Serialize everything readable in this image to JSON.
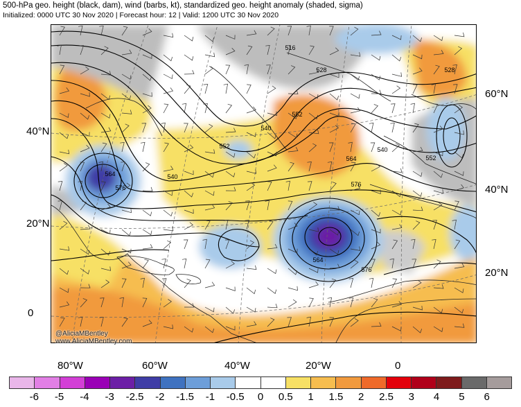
{
  "header": {
    "title": "500-hPa geo. height (black, dam), wind (barbs, kt), standardized geo. height anomaly (shaded, sigma)",
    "subtitle": "Initialized: 0000 UTC 30 Nov 2020 | Forecast hour: 12 | Valid: 1200 UTC 30 Nov 2020"
  },
  "map": {
    "left_lat_labels": [
      "40°N",
      "20°N",
      "0"
    ],
    "right_lat_labels": [
      "60°N",
      "40°N",
      "20°N"
    ],
    "lon_labels": [
      "80°W",
      "60°W",
      "40°W",
      "20°W",
      "0"
    ],
    "height_contour_labels": [
      "516",
      "528",
      "540",
      "552",
      "564",
      "576",
      "540",
      "552",
      "528",
      "540",
      "552",
      "564",
      "576",
      "564",
      "576"
    ],
    "credit_line1": "@AliciaMBentley",
    "credit_line2": "www.AliciaMBentley.com"
  },
  "legend": {
    "colors": [
      "#e9b6e9",
      "#e27fe5",
      "#d33fd6",
      "#9a00b6",
      "#6c1fa6",
      "#3f3da6",
      "#3f72c0",
      "#6d9ed9",
      "#a9cbea",
      "#ffffff",
      "#ffffff",
      "#f7e065",
      "#f6bd4f",
      "#f19a3e",
      "#ef6a2a",
      "#e3000b",
      "#b0001a",
      "#7e1b1c",
      "#6a6a6a",
      "#a59c9c"
    ],
    "tick_labels": [
      "-6",
      "-5",
      "-4",
      "-3",
      "-2.5",
      "-2",
      "-1.5",
      "-1",
      "-0.5",
      "0",
      "0.5",
      "1",
      "1.5",
      "2",
      "2.5",
      "3",
      "4",
      "5",
      "6"
    ]
  }
}
